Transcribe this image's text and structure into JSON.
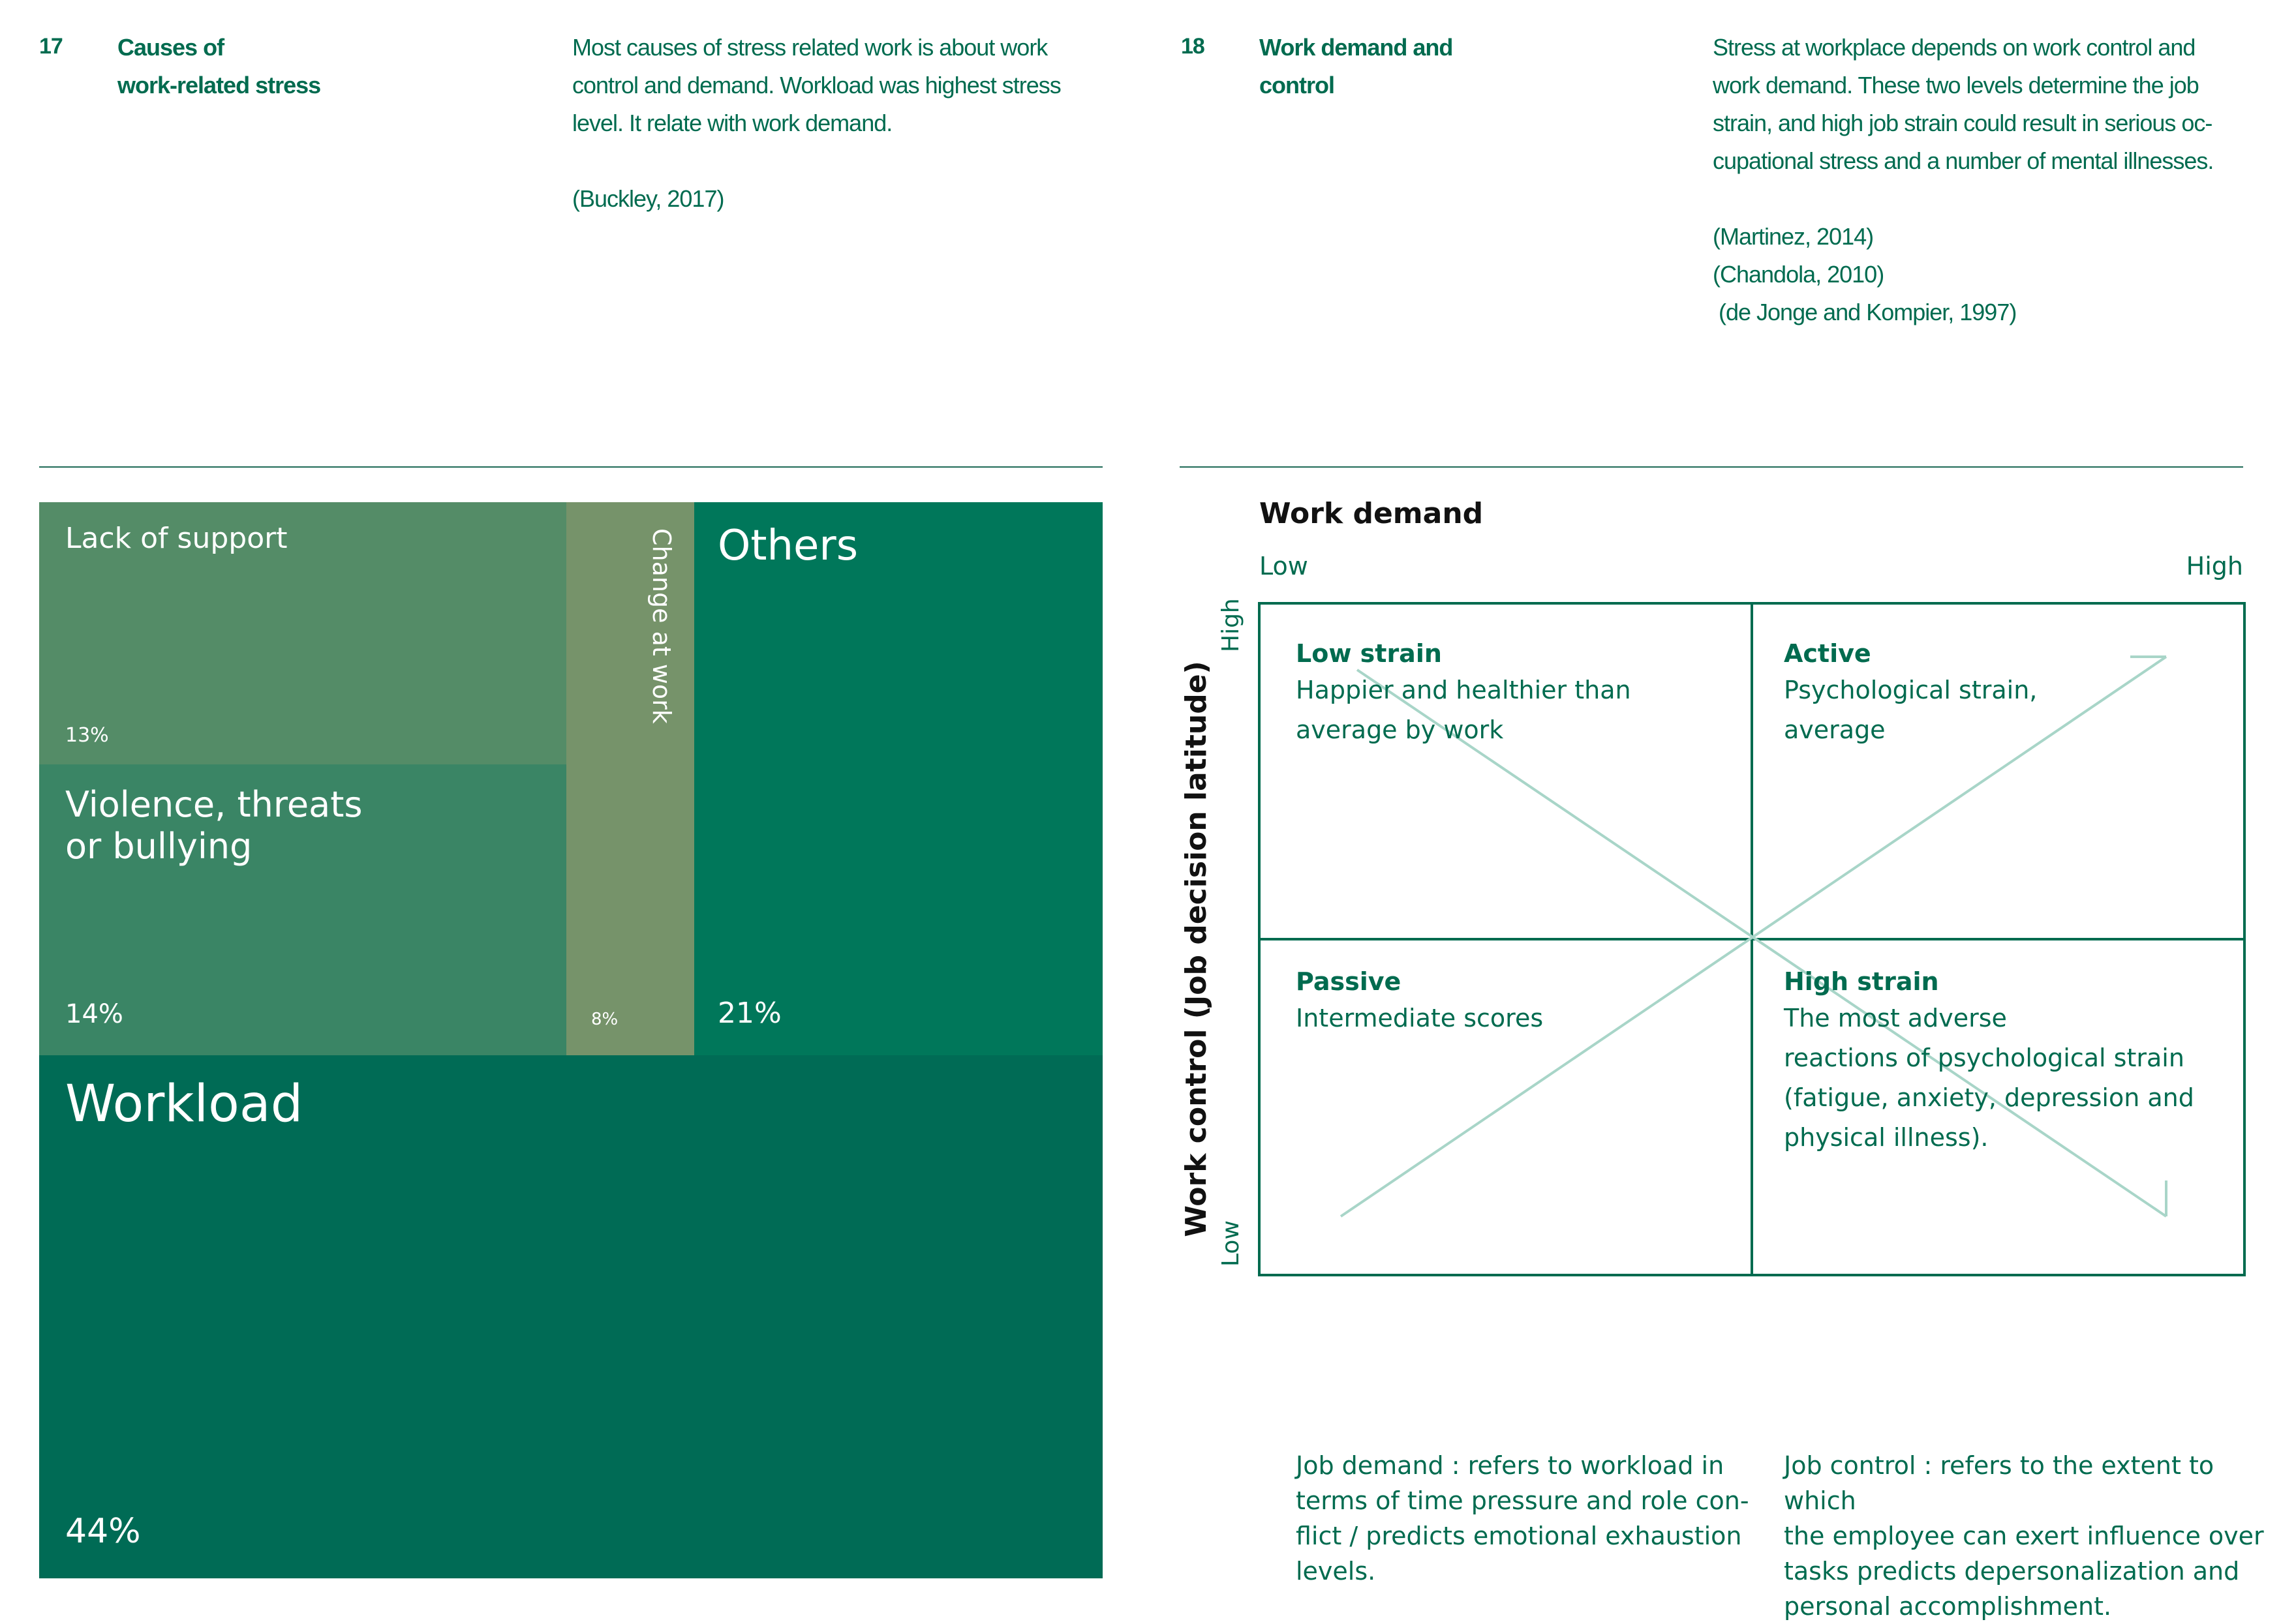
{
  "colors": {
    "text_green": "#006b4f",
    "lack_of_support": "#548c67",
    "violence": "#3a8565",
    "change_at_work": "#76936a",
    "others": "#00775a",
    "workload": "#006b55",
    "diagonal": "#a8d5c8",
    "grid_line": "#006b4f"
  },
  "left": {
    "number": "17",
    "heading": [
      "Causes of",
      "work-related stress"
    ],
    "description": [
      "Most causes of stress related work is about work",
      "control and demand. Workload was highest stress",
      "level. It relate with work demand."
    ],
    "citation": "(Buckley, 2017)"
  },
  "right": {
    "number": "18",
    "heading": [
      "Work demand and",
      "control"
    ],
    "description": [
      "Stress at workplace depends on work control and",
      "work demand. These two levels determine the job",
      "strain, and high job strain could result in serious oc-",
      "cupational stress and a number of mental illnesses."
    ],
    "citations": [
      "(Martinez, 2014)",
      "(Chandola, 2010)",
      " (de Jonge and Kompier, 1997)"
    ]
  },
  "chart_data": [
    {
      "type": "treemap",
      "cells": [
        {
          "name": "Workload",
          "value": 44,
          "label": "44%"
        },
        {
          "name": "Others",
          "value": 21,
          "label": "21%"
        },
        {
          "name": "Violence, threats or bullying",
          "lines": [
            "Violence, threats",
            "or bullying"
          ],
          "value": 14,
          "label": "14%"
        },
        {
          "name": "Lack of support",
          "value": 13,
          "label": "13%"
        },
        {
          "name": "Change at work",
          "value": 8,
          "label": "8%"
        }
      ]
    },
    {
      "type": "quadrant",
      "xlabel": "Work demand",
      "ylabel": "Work control (Job decision latitude)",
      "x_low": "Low",
      "x_high": "High",
      "y_high": "High",
      "y_low": "Low",
      "quadrants": [
        {
          "name": "Low strain",
          "position": "top-left",
          "lines": [
            "Happier and healthier than",
            "average by work"
          ]
        },
        {
          "name": "Active",
          "position": "top-right",
          "lines": [
            "Psychological strain,",
            "average"
          ]
        },
        {
          "name": "Passive",
          "position": "bottom-left",
          "lines": [
            "Intermediate scores"
          ]
        },
        {
          "name": "High strain",
          "position": "bottom-right",
          "lines": [
            "The most adverse",
            "reactions of psychological strain",
            "(fatigue, anxiety, depression and",
            "physical illness)."
          ]
        }
      ]
    }
  ],
  "definitions": {
    "job_demand": [
      "Job demand : refers to workload in",
      "terms of time pressure and role con-",
      "flict / predicts emotional exhaustion",
      "levels."
    ],
    "job_control": [
      "Job control : refers to the extent to which",
      "the employee can exert influence over",
      "tasks predicts depersonalization and",
      "personal accomplishment."
    ]
  }
}
